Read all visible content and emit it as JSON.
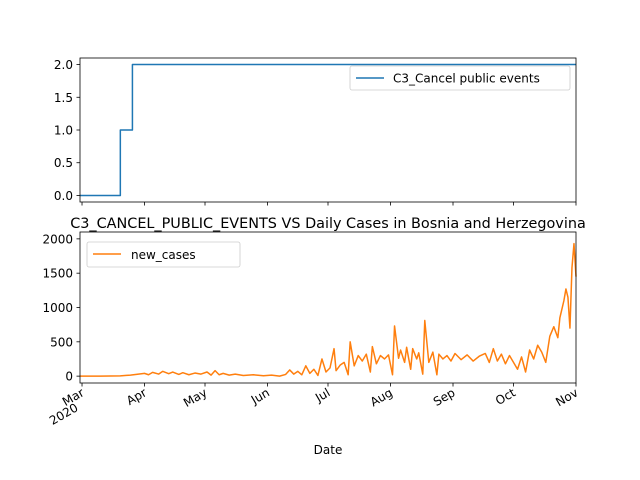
{
  "chart_data": [
    {
      "type": "line",
      "title": "",
      "xlabel": "",
      "ylabel": "",
      "ylim": [
        0.0,
        2.0
      ],
      "yticks": [
        "0.0",
        "0.5",
        "1.0",
        "1.5",
        "2.0"
      ],
      "legend_placement": "upper right",
      "series": [
        {
          "name": "C3_Cancel public events",
          "color": "#1f77b4",
          "points": [
            [
              "2020-02-29",
              0
            ],
            [
              "2020-03-20",
              0
            ],
            [
              "2020-03-20",
              1
            ],
            [
              "2020-03-26",
              1
            ],
            [
              "2020-03-26",
              2
            ],
            [
              "2020-11-01",
              2
            ]
          ]
        }
      ]
    },
    {
      "type": "line",
      "title": "C3_CANCEL_PUBLIC_EVENTS VS Daily Cases in Bosnia and Herzegovina",
      "xlabel": "Date",
      "ylabel": "",
      "ylim": [
        0,
        2000
      ],
      "yticks": [
        "0",
        "500",
        "1000",
        "1500",
        "2000"
      ],
      "xticks": [
        {
          "date": "2020-03-01",
          "label": "Mar",
          "sublabel": "2020"
        },
        {
          "date": "2020-04-01",
          "label": "Apr"
        },
        {
          "date": "2020-05-01",
          "label": "May"
        },
        {
          "date": "2020-06-01",
          "label": "Jun"
        },
        {
          "date": "2020-07-01",
          "label": "Jul"
        },
        {
          "date": "2020-08-01",
          "label": "Aug"
        },
        {
          "date": "2020-09-01",
          "label": "Sep"
        },
        {
          "date": "2020-10-01",
          "label": "Oct"
        },
        {
          "date": "2020-11-01",
          "label": "Nov"
        }
      ],
      "legend_placement": "upper left",
      "series": [
        {
          "name": "new_cases",
          "color": "#ff7f0e",
          "points": [
            [
              "2020-02-29",
              0
            ],
            [
              "2020-03-10",
              0
            ],
            [
              "2020-03-20",
              3
            ],
            [
              "2020-03-25",
              15
            ],
            [
              "2020-03-28",
              25
            ],
            [
              "2020-04-01",
              40
            ],
            [
              "2020-04-03",
              20
            ],
            [
              "2020-04-05",
              55
            ],
            [
              "2020-04-08",
              30
            ],
            [
              "2020-04-10",
              70
            ],
            [
              "2020-04-13",
              35
            ],
            [
              "2020-04-15",
              60
            ],
            [
              "2020-04-18",
              25
            ],
            [
              "2020-04-20",
              50
            ],
            [
              "2020-04-23",
              20
            ],
            [
              "2020-04-26",
              45
            ],
            [
              "2020-04-29",
              30
            ],
            [
              "2020-05-02",
              60
            ],
            [
              "2020-05-04",
              15
            ],
            [
              "2020-05-06",
              80
            ],
            [
              "2020-05-08",
              20
            ],
            [
              "2020-05-10",
              40
            ],
            [
              "2020-05-13",
              15
            ],
            [
              "2020-05-16",
              30
            ],
            [
              "2020-05-20",
              10
            ],
            [
              "2020-05-25",
              20
            ],
            [
              "2020-05-30",
              5
            ],
            [
              "2020-06-03",
              15
            ],
            [
              "2020-06-07",
              0
            ],
            [
              "2020-06-10",
              25
            ],
            [
              "2020-06-12",
              90
            ],
            [
              "2020-06-14",
              30
            ],
            [
              "2020-06-16",
              70
            ],
            [
              "2020-06-18",
              20
            ],
            [
              "2020-06-20",
              150
            ],
            [
              "2020-06-22",
              40
            ],
            [
              "2020-06-24",
              100
            ],
            [
              "2020-06-26",
              10
            ],
            [
              "2020-06-28",
              250
            ],
            [
              "2020-06-30",
              60
            ],
            [
              "2020-07-02",
              120
            ],
            [
              "2020-07-04",
              400
            ],
            [
              "2020-07-05",
              80
            ],
            [
              "2020-07-07",
              160
            ],
            [
              "2020-07-09",
              200
            ],
            [
              "2020-07-11",
              20
            ],
            [
              "2020-07-12",
              500
            ],
            [
              "2020-07-14",
              150
            ],
            [
              "2020-07-16",
              300
            ],
            [
              "2020-07-18",
              220
            ],
            [
              "2020-07-20",
              320
            ],
            [
              "2020-07-22",
              60
            ],
            [
              "2020-07-23",
              430
            ],
            [
              "2020-07-25",
              180
            ],
            [
              "2020-07-27",
              300
            ],
            [
              "2020-07-29",
              250
            ],
            [
              "2020-07-31",
              310
            ],
            [
              "2020-08-02",
              20
            ],
            [
              "2020-08-03",
              730
            ],
            [
              "2020-08-05",
              260
            ],
            [
              "2020-08-06",
              380
            ],
            [
              "2020-08-08",
              200
            ],
            [
              "2020-08-09",
              420
            ],
            [
              "2020-08-11",
              100
            ],
            [
              "2020-08-12",
              400
            ],
            [
              "2020-08-14",
              250
            ],
            [
              "2020-08-15",
              340
            ],
            [
              "2020-08-17",
              30
            ],
            [
              "2020-08-18",
              810
            ],
            [
              "2020-08-20",
              200
            ],
            [
              "2020-08-22",
              350
            ],
            [
              "2020-08-24",
              20
            ],
            [
              "2020-08-25",
              320
            ],
            [
              "2020-08-27",
              250
            ],
            [
              "2020-08-29",
              300
            ],
            [
              "2020-08-31",
              220
            ],
            [
              "2020-09-02",
              330
            ],
            [
              "2020-09-05",
              240
            ],
            [
              "2020-09-08",
              310
            ],
            [
              "2020-09-11",
              220
            ],
            [
              "2020-09-14",
              290
            ],
            [
              "2020-09-17",
              330
            ],
            [
              "2020-09-19",
              200
            ],
            [
              "2020-09-21",
              400
            ],
            [
              "2020-09-23",
              220
            ],
            [
              "2020-09-25",
              320
            ],
            [
              "2020-09-27",
              180
            ],
            [
              "2020-09-29",
              300
            ],
            [
              "2020-10-01",
              200
            ],
            [
              "2020-10-03",
              100
            ],
            [
              "2020-10-05",
              280
            ],
            [
              "2020-10-07",
              60
            ],
            [
              "2020-10-09",
              380
            ],
            [
              "2020-10-11",
              250
            ],
            [
              "2020-10-13",
              450
            ],
            [
              "2020-10-15",
              350
            ],
            [
              "2020-10-17",
              200
            ],
            [
              "2020-10-19",
              580
            ],
            [
              "2020-10-21",
              720
            ],
            [
              "2020-10-23",
              560
            ],
            [
              "2020-10-24",
              850
            ],
            [
              "2020-10-26",
              1100
            ],
            [
              "2020-10-27",
              1270
            ],
            [
              "2020-10-28",
              1150
            ],
            [
              "2020-10-29",
              700
            ],
            [
              "2020-10-30",
              1580
            ],
            [
              "2020-10-31",
              1930
            ],
            [
              "2020-11-01",
              1450
            ]
          ]
        }
      ]
    }
  ]
}
